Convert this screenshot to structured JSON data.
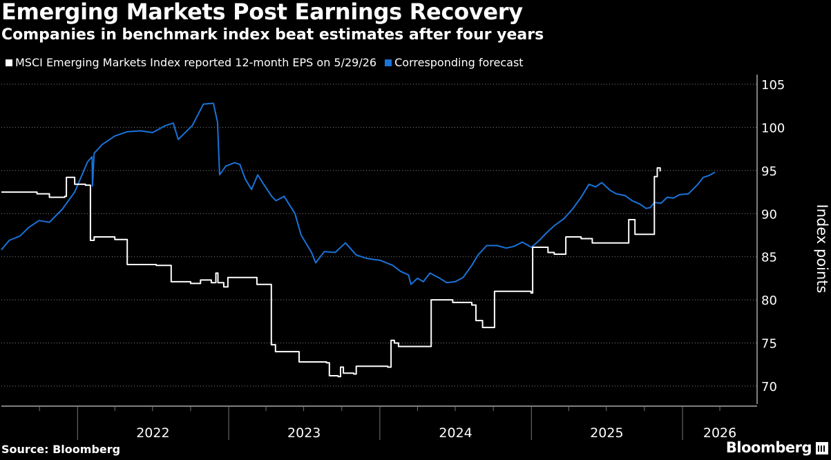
{
  "header": {
    "title": "Emerging Markets Post Earnings Recovery",
    "subtitle": "Companies in benchmark index beat estimates after four years"
  },
  "legend": [
    {
      "label": "MSCI Emerging Markets Index reported 12-month EPS on 5/29/26",
      "color": "#ffffff"
    },
    {
      "label": "Corresponding forecast",
      "color": "#1a73d9"
    }
  ],
  "footer": {
    "source": "Source: Bloomberg",
    "brand": "Bloomberg"
  },
  "chart_data": {
    "type": "line",
    "title": "Emerging Markets Post Earnings Recovery",
    "subtitle": "Companies in benchmark index beat estimates after four years",
    "ylabel": "Index points",
    "xlabel": "",
    "ylim": [
      69,
      107
    ],
    "xlim": [
      "2021-07-01",
      "2026-06-30"
    ],
    "yticks": [
      70,
      75,
      80,
      85,
      90,
      95,
      100,
      105
    ],
    "yticks_text": [
      "70",
      "75",
      "80",
      "85",
      "90",
      "95",
      "100",
      "105"
    ],
    "x_year_labels": [
      "2022",
      "2023",
      "2024",
      "2025",
      "2026"
    ],
    "grid": "horizontal dotted",
    "legend_position": "top-left",
    "series": [
      {
        "name": "MSCI Emerging Markets Index reported 12-month EPS on 5/29/26",
        "color": "#ffffff",
        "step": true,
        "points": [
          [
            "2021-07-01",
            92.5
          ],
          [
            "2021-09-25",
            92.3
          ],
          [
            "2021-10-25",
            91.9
          ],
          [
            "2021-12-01",
            92.0
          ],
          [
            "2021-12-05",
            94.2
          ],
          [
            "2021-12-25",
            93.4
          ],
          [
            "2022-01-20",
            93.3
          ],
          [
            "2022-02-01",
            86.9
          ],
          [
            "2022-02-10",
            87.3
          ],
          [
            "2022-04-01",
            87.0
          ],
          [
            "2022-05-01",
            84.1
          ],
          [
            "2022-07-10",
            84.0
          ],
          [
            "2022-08-15",
            82.1
          ],
          [
            "2022-10-01",
            81.9
          ],
          [
            "2022-10-25",
            82.3
          ],
          [
            "2022-11-20",
            82.0
          ],
          [
            "2022-12-01",
            83.1
          ],
          [
            "2022-12-06",
            82.0
          ],
          [
            "2022-12-20",
            81.5
          ],
          [
            "2022-12-30",
            82.6
          ],
          [
            "2023-03-10",
            81.8
          ],
          [
            "2023-04-10",
            81.8
          ],
          [
            "2023-04-14",
            74.8
          ],
          [
            "2023-04-24",
            74.0
          ],
          [
            "2023-06-20",
            72.8
          ],
          [
            "2023-08-25",
            72.7
          ],
          [
            "2023-09-01",
            71.2
          ],
          [
            "2023-09-22",
            71.1
          ],
          [
            "2023-09-28",
            72.2
          ],
          [
            "2023-10-05",
            71.5
          ],
          [
            "2023-10-30",
            71.4
          ],
          [
            "2023-11-05",
            72.3
          ],
          [
            "2024-01-20",
            72.2
          ],
          [
            "2024-01-28",
            75.3
          ],
          [
            "2024-02-05",
            75.0
          ],
          [
            "2024-02-15",
            74.6
          ],
          [
            "2024-04-30",
            74.6
          ],
          [
            "2024-05-04",
            80.0
          ],
          [
            "2024-06-25",
            79.7
          ],
          [
            "2024-08-10",
            79.4
          ],
          [
            "2024-08-20",
            77.6
          ],
          [
            "2024-09-05",
            76.8
          ],
          [
            "2024-10-01",
            76.8
          ],
          [
            "2024-10-04",
            81.0
          ],
          [
            "2024-12-31",
            80.8
          ],
          [
            "2025-01-04",
            86.1
          ],
          [
            "2025-02-10",
            85.5
          ],
          [
            "2025-02-25",
            85.3
          ],
          [
            "2025-03-20",
            85.3
          ],
          [
            "2025-03-25",
            87.3
          ],
          [
            "2025-05-01",
            87.1
          ],
          [
            "2025-05-28",
            86.6
          ],
          [
            "2025-08-20",
            86.6
          ],
          [
            "2025-08-24",
            89.3
          ],
          [
            "2025-09-08",
            87.6
          ],
          [
            "2025-10-20",
            87.6
          ],
          [
            "2025-10-25",
            94.3
          ],
          [
            "2025-11-01",
            95.3
          ],
          [
            "2025-11-08",
            94.9
          ]
        ]
      },
      {
        "name": "Corresponding forecast",
        "color": "#1a73d9",
        "step": false,
        "points": [
          [
            "2021-07-01",
            85.8
          ],
          [
            "2021-07-20",
            86.9
          ],
          [
            "2021-08-15",
            87.4
          ],
          [
            "2021-09-05",
            88.4
          ],
          [
            "2021-09-30",
            89.2
          ],
          [
            "2021-10-25",
            89.0
          ],
          [
            "2021-11-25",
            90.5
          ],
          [
            "2021-12-25",
            92.5
          ],
          [
            "2022-01-25",
            96.0
          ],
          [
            "2022-02-05",
            96.6
          ],
          [
            "2022-02-06",
            93.2
          ],
          [
            "2022-02-10",
            97.0
          ],
          [
            "2022-03-01",
            98.0
          ],
          [
            "2022-04-01",
            99.0
          ],
          [
            "2022-05-01",
            99.5
          ],
          [
            "2022-06-01",
            99.6
          ],
          [
            "2022-07-01",
            99.4
          ],
          [
            "2022-08-01",
            100.2
          ],
          [
            "2022-08-20",
            100.5
          ],
          [
            "2022-09-01",
            98.6
          ],
          [
            "2022-09-20",
            99.5
          ],
          [
            "2022-10-05",
            100.2
          ],
          [
            "2022-11-01",
            102.7
          ],
          [
            "2022-11-25",
            102.8
          ],
          [
            "2022-12-05",
            100.6
          ],
          [
            "2022-12-10",
            94.5
          ],
          [
            "2022-12-25",
            95.5
          ],
          [
            "2023-01-15",
            95.9
          ],
          [
            "2023-01-28",
            95.7
          ],
          [
            "2023-02-10",
            94.0
          ],
          [
            "2023-02-25",
            92.8
          ],
          [
            "2023-03-12",
            94.5
          ],
          [
            "2023-03-25",
            93.5
          ],
          [
            "2023-04-15",
            92.0
          ],
          [
            "2023-04-25",
            91.5
          ],
          [
            "2023-05-15",
            92.0
          ],
          [
            "2023-06-10",
            90.0
          ],
          [
            "2023-06-25",
            87.5
          ],
          [
            "2023-07-20",
            85.5
          ],
          [
            "2023-07-30",
            84.3
          ],
          [
            "2023-08-20",
            85.6
          ],
          [
            "2023-09-15",
            85.5
          ],
          [
            "2023-10-10",
            86.6
          ],
          [
            "2023-11-05",
            85.2
          ],
          [
            "2023-12-01",
            84.8
          ],
          [
            "2024-01-01",
            84.6
          ],
          [
            "2024-02-01",
            84.0
          ],
          [
            "2024-02-20",
            83.3
          ],
          [
            "2024-03-10",
            82.9
          ],
          [
            "2024-03-16",
            81.8
          ],
          [
            "2024-04-01",
            82.5
          ],
          [
            "2024-04-15",
            82.1
          ],
          [
            "2024-05-01",
            83.1
          ],
          [
            "2024-05-25",
            82.5
          ],
          [
            "2024-06-10",
            82.0
          ],
          [
            "2024-07-01",
            82.1
          ],
          [
            "2024-07-20",
            82.6
          ],
          [
            "2024-08-10",
            84.0
          ],
          [
            "2024-08-25",
            85.2
          ],
          [
            "2024-09-15",
            86.3
          ],
          [
            "2024-10-10",
            86.3
          ],
          [
            "2024-11-01",
            86.0
          ],
          [
            "2024-11-20",
            86.2
          ],
          [
            "2024-12-10",
            86.7
          ],
          [
            "2025-01-01",
            86.1
          ],
          [
            "2025-01-20",
            86.9
          ],
          [
            "2025-02-05",
            87.7
          ],
          [
            "2025-02-25",
            88.6
          ],
          [
            "2025-03-20",
            89.4
          ],
          [
            "2025-04-10",
            90.5
          ],
          [
            "2025-05-01",
            91.9
          ],
          [
            "2025-05-20",
            93.4
          ],
          [
            "2025-06-05",
            93.1
          ],
          [
            "2025-06-20",
            93.6
          ],
          [
            "2025-07-10",
            92.7
          ],
          [
            "2025-07-25",
            92.3
          ],
          [
            "2025-08-15",
            92.1
          ],
          [
            "2025-09-01",
            91.5
          ],
          [
            "2025-09-20",
            91.1
          ],
          [
            "2025-10-05",
            90.6
          ],
          [
            "2025-10-15",
            90.7
          ],
          [
            "2025-10-25",
            91.3
          ],
          [
            "2025-11-10",
            91.2
          ],
          [
            "2025-11-25",
            91.9
          ],
          [
            "2025-12-10",
            91.8
          ],
          [
            "2025-12-25",
            92.2
          ],
          [
            "2026-01-15",
            92.3
          ],
          [
            "2026-02-05",
            93.3
          ],
          [
            "2026-02-20",
            94.2
          ],
          [
            "2026-03-05",
            94.4
          ],
          [
            "2026-03-20",
            94.8
          ]
        ]
      }
    ]
  }
}
